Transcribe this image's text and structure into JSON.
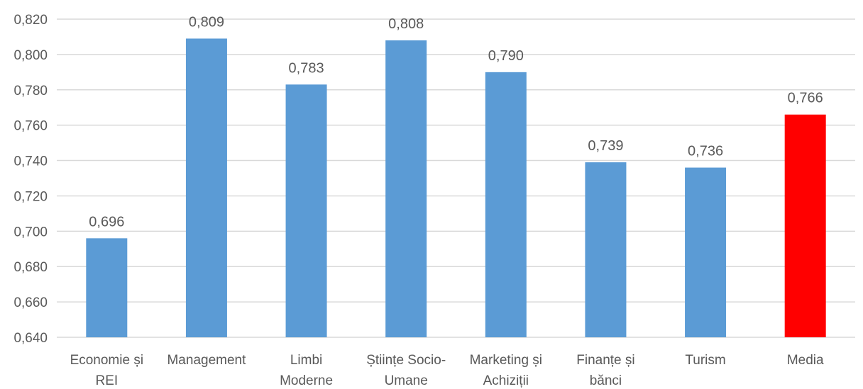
{
  "chart_data": {
    "type": "bar",
    "title": "",
    "xlabel": "",
    "ylabel": "",
    "ylim": [
      0.64,
      0.82
    ],
    "y_ticks": [
      0.64,
      0.66,
      0.68,
      0.7,
      0.72,
      0.74,
      0.76,
      0.78,
      0.8,
      0.82
    ],
    "y_tick_labels": [
      "0,640",
      "0,660",
      "0,680",
      "0,700",
      "0,720",
      "0,740",
      "0,760",
      "0,780",
      "0,800",
      "0,820"
    ],
    "grid": true,
    "legend": "none",
    "categories": [
      [
        "Economie și",
        "REI"
      ],
      [
        "Management"
      ],
      [
        "Limbi",
        "Moderne"
      ],
      [
        "Științe Socio-",
        "Umane"
      ],
      [
        "Marketing și",
        "Achiziții"
      ],
      [
        "Finanțe și",
        "bănci"
      ],
      [
        "Turism"
      ],
      [
        "Media"
      ]
    ],
    "values": [
      0.696,
      0.809,
      0.783,
      0.808,
      0.79,
      0.739,
      0.736,
      0.766
    ],
    "value_labels": [
      "0,696",
      "0,809",
      "0,783",
      "0,808",
      "0,790",
      "0,739",
      "0,736",
      "0,766"
    ],
    "bar_colors": [
      "#5B9BD5",
      "#5B9BD5",
      "#5B9BD5",
      "#5B9BD5",
      "#5B9BD5",
      "#5B9BD5",
      "#5B9BD5",
      "#FF0000"
    ],
    "grid_color": "#D9D9D9",
    "text_color": "#595959"
  }
}
